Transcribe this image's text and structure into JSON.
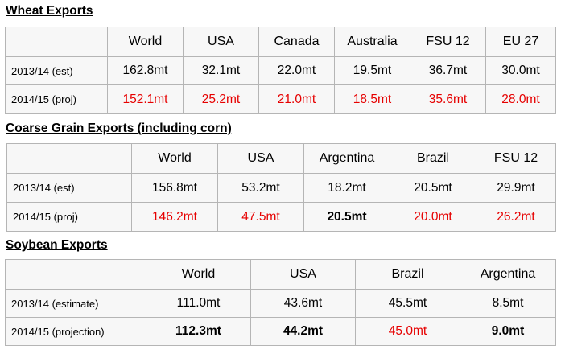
{
  "wheat": {
    "title": "Wheat Exports",
    "headers": [
      "",
      "World",
      "USA",
      "Canada",
      "Australia",
      "FSU 12",
      "EU 27"
    ],
    "rows": [
      {
        "label": "2013/14 (est)",
        "values": [
          "162.8mt",
          "32.1mt",
          "22.0mt",
          "19.5mt",
          "36.7mt",
          "30.0mt"
        ]
      },
      {
        "label": "2014/15 (proj)",
        "values": [
          "152.1mt",
          "25.2mt",
          "21.0mt",
          "18.5mt",
          "35.6mt",
          "28.0mt"
        ]
      }
    ]
  },
  "coarse_grain": {
    "title": "Coarse Grain Exports (including corn)",
    "headers": [
      "",
      "World",
      "USA",
      "Argentina",
      "Brazil",
      "FSU 12"
    ],
    "rows": [
      {
        "label": "2013/14 (est)",
        "values": [
          "156.8mt",
          "53.2mt",
          "18.2mt",
          "20.5mt",
          "29.9mt"
        ]
      },
      {
        "label": "2014/15 (proj)",
        "values": [
          "146.2mt",
          "47.5mt",
          "20.5mt",
          "20.0mt",
          "26.2mt"
        ]
      }
    ]
  },
  "soybean": {
    "title": "Soybean Exports",
    "headers": [
      "",
      "World",
      "USA",
      "Brazil",
      "Argentina"
    ],
    "rows": [
      {
        "label": "2013/14 (estimate)",
        "values": [
          "111.0mt",
          "43.6mt",
          "45.5mt",
          "8.5mt"
        ]
      },
      {
        "label": "2014/15 (projection)",
        "values": [
          "112.3mt",
          "44.2mt",
          "45.0mt",
          "9.0mt"
        ]
      }
    ]
  },
  "colors": {
    "border": "#b5b5b5",
    "cell_bg": "#f7f7f7",
    "projection_red": "#e60000"
  }
}
